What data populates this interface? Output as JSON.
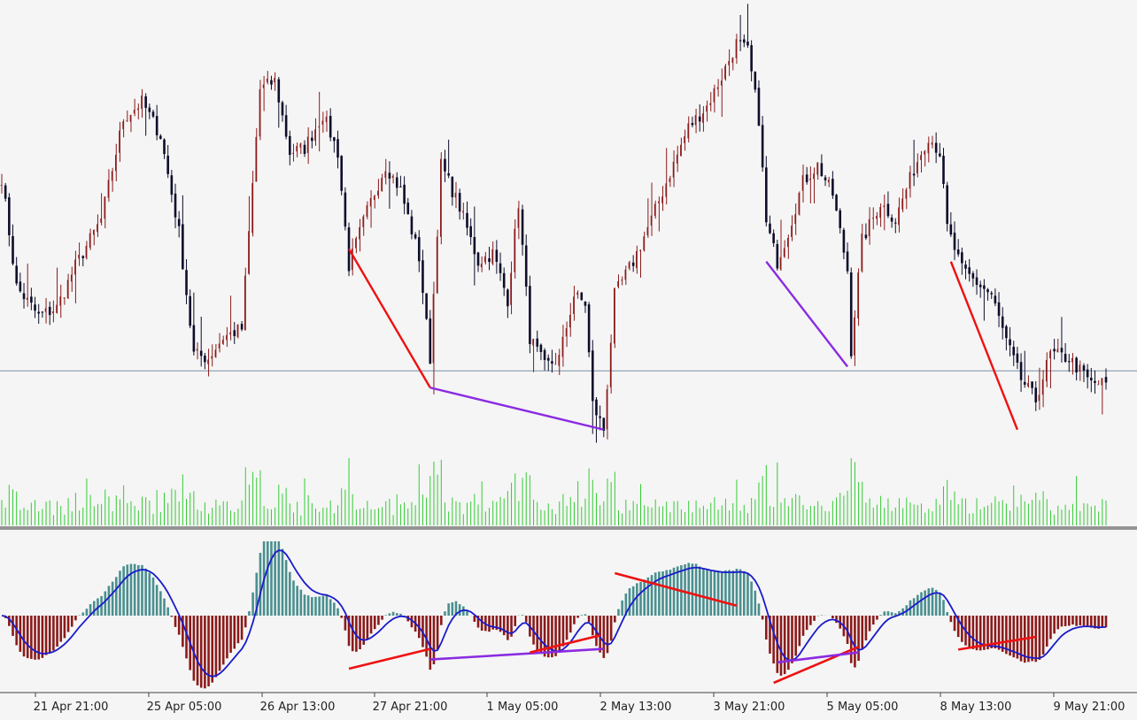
{
  "chart_data": {
    "type": "candlestick",
    "x_tick_labels": [
      "21 Apr 21:00",
      "25 Apr 05:00",
      "26 Apr 13:00",
      "27 Apr 21:00",
      "1 May 05:00",
      "2 May 13:00",
      "3 May 21:00",
      "5 May 05:00",
      "8 May 13:00",
      "9 May 21:00"
    ],
    "bars": 300,
    "close_keypoints": [
      [
        0,
        0.63
      ],
      [
        4,
        0.37
      ],
      [
        10,
        0.3
      ],
      [
        15,
        0.32
      ],
      [
        20,
        0.42
      ],
      [
        27,
        0.53
      ],
      [
        33,
        0.77
      ],
      [
        38,
        0.81
      ],
      [
        43,
        0.73
      ],
      [
        48,
        0.5
      ],
      [
        52,
        0.21
      ],
      [
        56,
        0.2
      ],
      [
        60,
        0.25
      ],
      [
        65,
        0.27
      ],
      [
        70,
        0.84
      ],
      [
        74,
        0.86
      ],
      [
        78,
        0.69
      ],
      [
        82,
        0.7
      ],
      [
        87,
        0.78
      ],
      [
        91,
        0.69
      ],
      [
        94,
        0.42
      ],
      [
        99,
        0.55
      ],
      [
        104,
        0.66
      ],
      [
        108,
        0.6
      ],
      [
        113,
        0.44
      ],
      [
        116,
        0.2
      ],
      [
        119,
        0.66
      ],
      [
        124,
        0.56
      ],
      [
        129,
        0.43
      ],
      [
        133,
        0.45
      ],
      [
        137,
        0.34
      ],
      [
        140,
        0.57
      ],
      [
        143,
        0.25
      ],
      [
        147,
        0.18
      ],
      [
        151,
        0.2
      ],
      [
        155,
        0.35
      ],
      [
        158,
        0.33
      ],
      [
        160,
        0.09
      ],
      [
        163,
        0.03
      ],
      [
        166,
        0.35
      ],
      [
        171,
        0.43
      ],
      [
        176,
        0.53
      ],
      [
        181,
        0.64
      ],
      [
        186,
        0.75
      ],
      [
        191,
        0.8
      ],
      [
        195,
        0.87
      ],
      [
        199,
        0.95
      ],
      [
        202,
        0.93
      ],
      [
        205,
        0.77
      ],
      [
        207,
        0.52
      ],
      [
        210,
        0.43
      ],
      [
        213,
        0.5
      ],
      [
        217,
        0.62
      ],
      [
        221,
        0.66
      ],
      [
        225,
        0.59
      ],
      [
        229,
        0.41
      ],
      [
        230,
        0.22
      ],
      [
        233,
        0.48
      ],
      [
        238,
        0.57
      ],
      [
        242,
        0.53
      ],
      [
        247,
        0.65
      ],
      [
        251,
        0.73
      ],
      [
        254,
        0.69
      ],
      [
        256,
        0.51
      ],
      [
        260,
        0.41
      ],
      [
        264,
        0.38
      ],
      [
        268,
        0.35
      ],
      [
        272,
        0.24
      ],
      [
        276,
        0.15
      ],
      [
        280,
        0.1
      ],
      [
        284,
        0.21
      ],
      [
        289,
        0.2
      ],
      [
        292,
        0.17
      ],
      [
        295,
        0.14
      ]
    ],
    "price_line_level": 0.17,
    "volume_color": "#33cc33",
    "bull_candle_color": "#8b1a1a",
    "bear_candle_color": "#0d0d2b",
    "histogram_positive_color": "#4a8f8f",
    "histogram_negative_color": "#8b1a1a",
    "signal_line_color": "#1a1acc",
    "divergence_colors": [
      "#ee1111",
      "#8a2be2"
    ],
    "price_divergence_lines": [
      {
        "color": "red",
        "from": [
          94,
          0.46
        ],
        "to": [
          116,
          0.13
        ]
      },
      {
        "color": "purple",
        "from": [
          116,
          0.13
        ],
        "to": [
          163,
          0.03
        ]
      },
      {
        "color": "purple",
        "from": [
          207,
          0.43
        ],
        "to": [
          229,
          0.18
        ]
      },
      {
        "color": "red",
        "from": [
          257,
          0.43
        ],
        "to": [
          275,
          0.03
        ]
      }
    ],
    "oscillator_divergence_lines": [
      {
        "color": "red",
        "from": [
          94,
          -0.75
        ],
        "to": [
          116,
          -0.47
        ]
      },
      {
        "color": "purple",
        "from": [
          116,
          -0.62
        ],
        "to": [
          163,
          -0.47
        ]
      },
      {
        "color": "red",
        "from": [
          143,
          -0.52
        ],
        "to": [
          162,
          -0.28
        ]
      },
      {
        "color": "red",
        "from": [
          166,
          0.6
        ],
        "to": [
          199,
          0.14
        ]
      },
      {
        "color": "red",
        "from": [
          209,
          -0.95
        ],
        "to": [
          232,
          -0.44
        ]
      },
      {
        "color": "purple",
        "from": [
          210,
          -0.66
        ],
        "to": [
          232,
          -0.52
        ]
      },
      {
        "color": "red",
        "from": [
          259,
          -0.48
        ],
        "to": [
          280,
          -0.3
        ]
      }
    ]
  }
}
